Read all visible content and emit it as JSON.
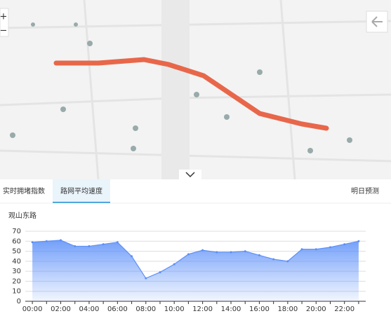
{
  "map": {
    "zoom_in": "+",
    "zoom_out": "−"
  },
  "tabs": [
    "实时拥堵指数",
    "路网平均速度",
    "明日预测"
  ],
  "chart_data": {
    "type": "area",
    "title": "观山东路",
    "categories": [
      "00:00",
      null,
      "02:00",
      null,
      "04:00",
      null,
      "06:00",
      null,
      "08:00",
      null,
      "10:00",
      null,
      "12:00",
      null,
      "14:00",
      null,
      "16:00",
      null,
      "18:00",
      null,
      "20:00",
      null,
      "22:00",
      null
    ],
    "values": [
      59,
      60,
      61,
      55,
      55,
      57,
      59,
      45,
      23,
      29,
      37,
      47,
      51,
      49,
      49,
      50,
      46,
      42,
      40,
      52,
      52,
      54,
      57,
      60
    ],
    "color": "#5b8ff9",
    "ylim": [
      0,
      70
    ],
    "yticks": [
      0,
      10,
      20,
      30,
      40,
      50,
      60,
      70
    ],
    "grid": true
  }
}
